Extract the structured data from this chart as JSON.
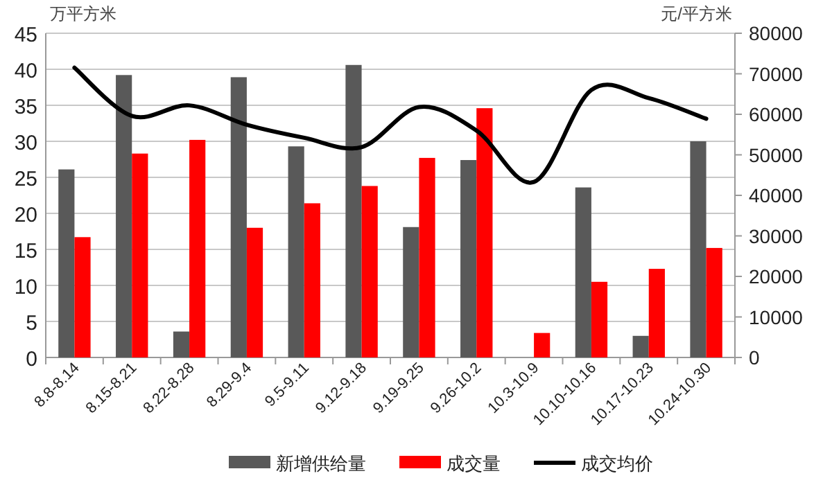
{
  "chart_data": {
    "type": "bar",
    "ylabel": "万平方米",
    "y2label": "元/平方米",
    "categories": [
      "8.8-8.14",
      "8.15-8.21",
      "8.22-8.28",
      "8.29-9.4",
      "9.5-9.11",
      "9.12-9.18",
      "9.19-9.25",
      "9.26-10.2",
      "10.3-10.9",
      "10.10-10.16",
      "10.17-10.23",
      "10.24-10.30"
    ],
    "series": [
      {
        "name": "新增供给量",
        "color": "#595959",
        "values": [
          26.1,
          39.2,
          3.6,
          38.9,
          29.3,
          40.6,
          18.1,
          27.4,
          null,
          23.6,
          3.0,
          30.0
        ]
      },
      {
        "name": "成交量",
        "color": "#ff0000",
        "values": [
          16.7,
          28.3,
          30.2,
          18.0,
          21.4,
          23.8,
          27.7,
          34.6,
          3.4,
          10.5,
          12.3,
          15.2
        ]
      },
      {
        "name": "成交均价",
        "color": "#000000",
        "type": "line",
        "axis": "y2",
        "values": [
          71500,
          59600,
          62200,
          57400,
          54200,
          51900,
          61800,
          56000,
          43300,
          66000,
          64000,
          58900
        ]
      }
    ],
    "ylim": [
      0,
      45
    ],
    "yticks": [
      0,
      5,
      10,
      15,
      20,
      25,
      30,
      35,
      40,
      45
    ],
    "y2lim": [
      0,
      80000
    ],
    "y2ticks": [
      0,
      10000,
      20000,
      30000,
      40000,
      50000,
      60000,
      70000,
      80000
    ],
    "grid": "y",
    "legend": "bottom",
    "marker": "none",
    "line_style": "solid"
  }
}
